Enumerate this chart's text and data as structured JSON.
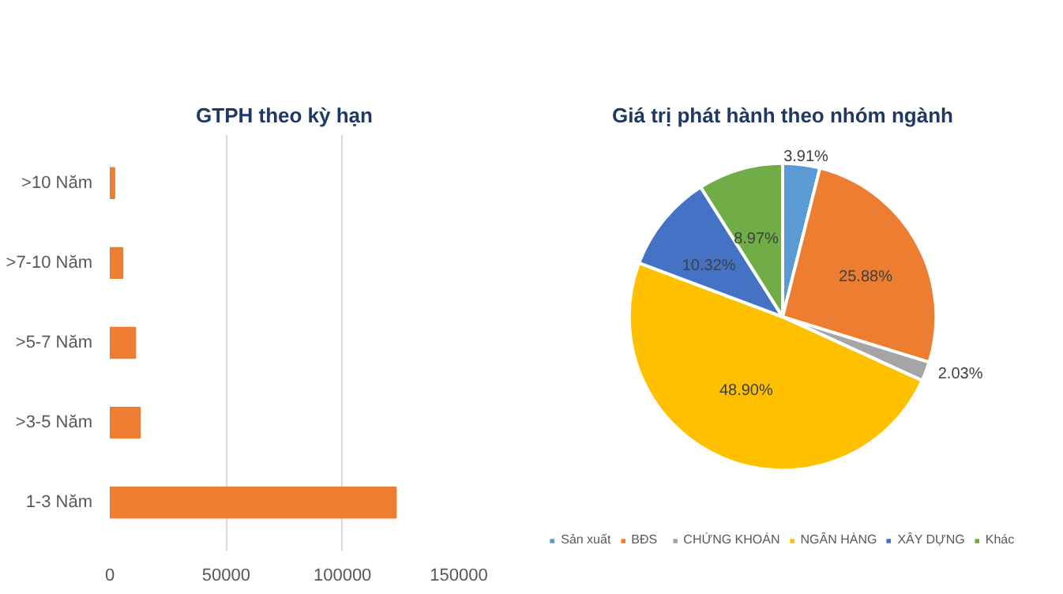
{
  "chart_data": [
    {
      "type": "bar",
      "orientation": "horizontal",
      "title": "GTPH theo kỳ hạn",
      "categories": [
        ">10 Năm",
        ">7-10 Năm",
        ">5-7 Năm",
        ">3-5 Năm",
        "1-3 Năm"
      ],
      "values": [
        2000,
        5500,
        11000,
        13000,
        123000
      ],
      "color": "#ed7d31",
      "xlim": [
        0,
        150000
      ],
      "xticks": [
        0,
        50000,
        100000,
        150000
      ],
      "grid": "x"
    },
    {
      "type": "pie",
      "title": "Giá trị phát hành theo nhóm ngành",
      "categories": [
        "Sản xuất",
        "BĐS",
        "CHỨNG KHOÁN",
        "NGÂN HÀNG",
        "XÂY DỰNG",
        "Khác"
      ],
      "values": [
        3.91,
        25.88,
        2.03,
        48.9,
        10.32,
        8.97
      ],
      "value_labels": [
        "3.91%",
        "25.88%",
        "2.03%",
        "48.90%",
        "10.32%",
        "8.97%"
      ],
      "colors": [
        "#5b9bd5",
        "#ed7d31",
        "#a5a5a5",
        "#ffc000",
        "#4472c4",
        "#70ad47"
      ],
      "legend": "bottom"
    }
  ]
}
